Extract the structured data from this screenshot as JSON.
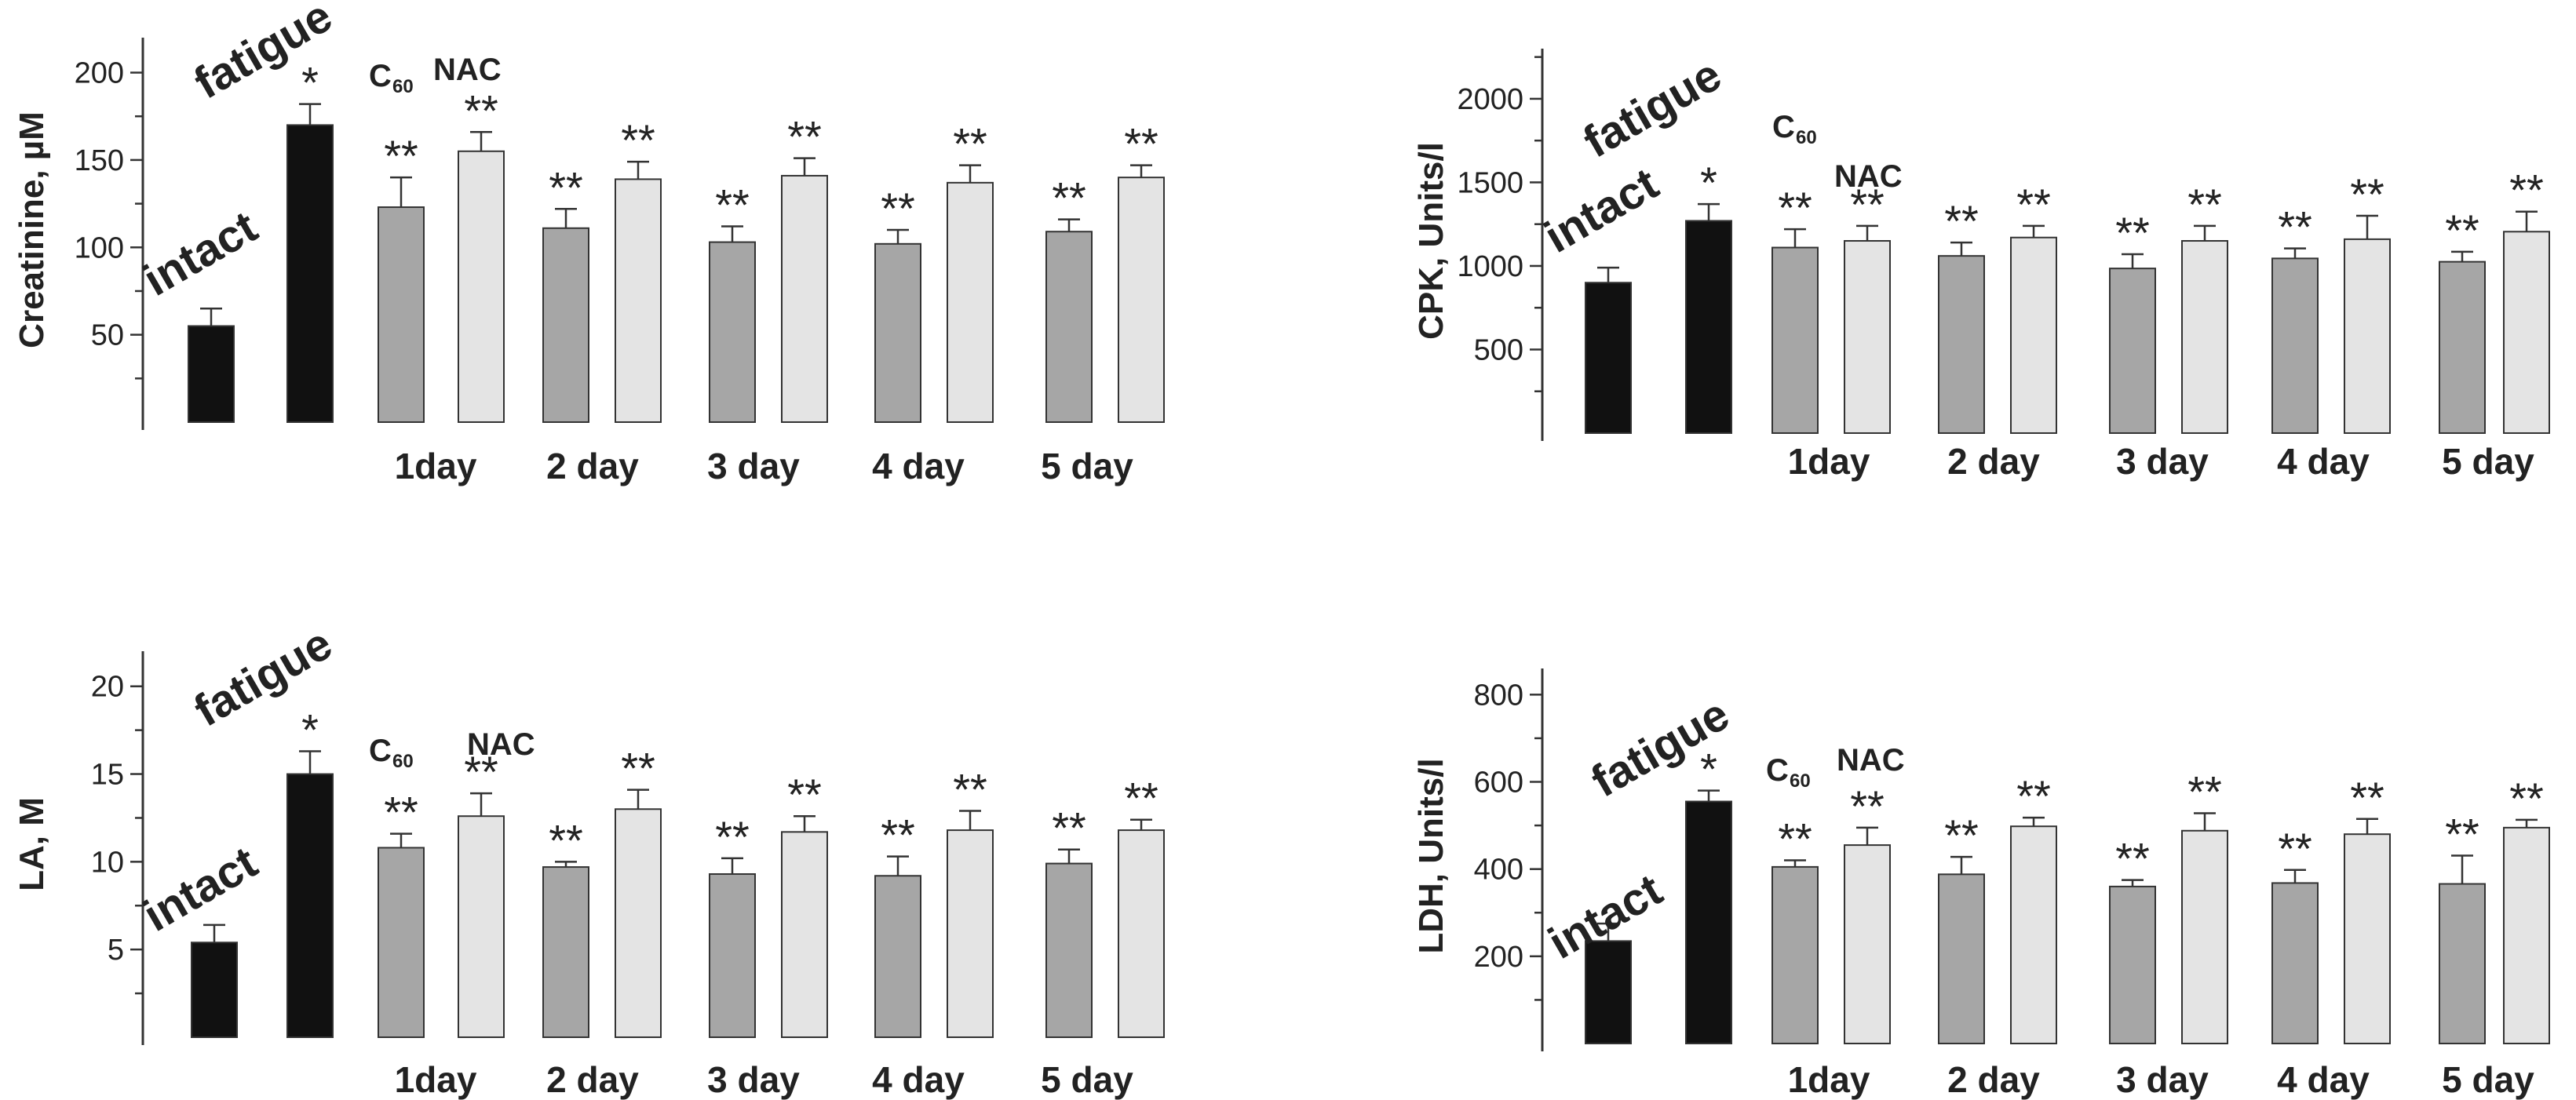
{
  "chart_data": [
    {
      "type": "bar",
      "ylabel": "Creatinine, µM",
      "yticks": [
        50,
        100,
        150,
        200
      ],
      "ylim": [
        0,
        220
      ],
      "control_labels": [
        "intact",
        "fatigue"
      ],
      "legend": {
        "c60": "C",
        "c60_sub": "60",
        "nac": "NAC"
      },
      "controls": [
        {
          "name": "intact",
          "value": 55,
          "err": 10,
          "mark": ""
        },
        {
          "name": "fatigue",
          "value": 170,
          "err": 12,
          "mark": "*"
        }
      ],
      "categories": [
        "1day",
        "2 day",
        "3 day",
        "4 day",
        "5 day"
      ],
      "series": [
        {
          "name": "C60",
          "values": [
            123,
            111,
            103,
            102,
            109
          ],
          "errors": [
            17,
            11,
            9,
            8,
            7
          ],
          "marks": [
            "**",
            "**",
            "**",
            "**",
            "**"
          ]
        },
        {
          "name": "NAC",
          "values": [
            155,
            139,
            141,
            137,
            140
          ],
          "errors": [
            11,
            10,
            10,
            10,
            7
          ],
          "marks": [
            "**",
            "**",
            "**",
            "**",
            "**"
          ]
        }
      ]
    },
    {
      "type": "bar",
      "ylabel": "CPK, Units/l",
      "yticks": [
        500,
        1000,
        1500,
        2000
      ],
      "ylim": [
        0,
        2300
      ],
      "control_labels": [
        "intact",
        "fatigue"
      ],
      "legend": {
        "c60": "C",
        "c60_sub": "60",
        "nac": "NAC"
      },
      "controls": [
        {
          "name": "intact",
          "value": 900,
          "err": 90,
          "mark": ""
        },
        {
          "name": "fatigue",
          "value": 1270,
          "err": 100,
          "mark": "*"
        }
      ],
      "categories": [
        "1day",
        "2 day",
        "3 day",
        "4 day",
        "5 day"
      ],
      "series": [
        {
          "name": "C60",
          "values": [
            1110,
            1060,
            985,
            1045,
            1025
          ],
          "errors": [
            110,
            80,
            85,
            60,
            60
          ],
          "marks": [
            "**",
            "**",
            "**",
            "**",
            "**"
          ]
        },
        {
          "name": "NAC",
          "values": [
            1150,
            1170,
            1150,
            1160,
            1205
          ],
          "errors": [
            90,
            70,
            90,
            140,
            120
          ],
          "marks": [
            "**",
            "**",
            "**",
            "**",
            "**"
          ]
        }
      ]
    },
    {
      "type": "bar",
      "ylabel": "LA, M",
      "yticks": [
        5,
        10,
        15,
        20
      ],
      "ylim": [
        0,
        22
      ],
      "control_labels": [
        "intact",
        "fatigue"
      ],
      "legend": {
        "c60": "C",
        "c60_sub": "60",
        "nac": "NAC"
      },
      "controls": [
        {
          "name": "intact",
          "value": 5.4,
          "err": 1.0,
          "mark": ""
        },
        {
          "name": "fatigue",
          "value": 15.0,
          "err": 1.3,
          "mark": "*"
        }
      ],
      "categories": [
        "1day",
        "2 day",
        "3 day",
        "4 day",
        "5 day"
      ],
      "series": [
        {
          "name": "C60",
          "values": [
            10.8,
            9.7,
            9.3,
            9.2,
            9.9
          ],
          "errors": [
            0.8,
            0.3,
            0.9,
            1.1,
            0.8
          ],
          "marks": [
            "**",
            "**",
            "**",
            "**",
            "**"
          ]
        },
        {
          "name": "NAC",
          "values": [
            12.6,
            13.0,
            11.7,
            11.8,
            11.8
          ],
          "errors": [
            1.3,
            1.1,
            0.9,
            1.1,
            0.6
          ],
          "marks": [
            "**",
            "**",
            "**",
            "**",
            "**"
          ]
        }
      ]
    },
    {
      "type": "bar",
      "ylabel": "LDH, Units/l",
      "yticks": [
        200,
        400,
        600,
        800
      ],
      "ylim": [
        0,
        860
      ],
      "control_labels": [
        "intact",
        "fatigue"
      ],
      "legend": {
        "c60": "C",
        "c60_sub": "60",
        "nac": "NAC"
      },
      "controls": [
        {
          "name": "intact",
          "value": 235,
          "err": 40,
          "mark": ""
        },
        {
          "name": "fatigue",
          "value": 555,
          "err": 25,
          "mark": "*"
        }
      ],
      "categories": [
        "1day",
        "2 day",
        "3 day",
        "4 day",
        "5 day"
      ],
      "series": [
        {
          "name": "C60",
          "values": [
            405,
            388,
            360,
            368,
            366
          ],
          "errors": [
            15,
            40,
            15,
            30,
            65
          ],
          "marks": [
            "**",
            "**",
            "**",
            "**",
            "**"
          ]
        },
        {
          "name": "NAC",
          "values": [
            455,
            498,
            488,
            480,
            495
          ],
          "errors": [
            40,
            20,
            40,
            35,
            18
          ],
          "marks": [
            "**",
            "**",
            "**",
            "**",
            "**"
          ]
        }
      ]
    }
  ]
}
